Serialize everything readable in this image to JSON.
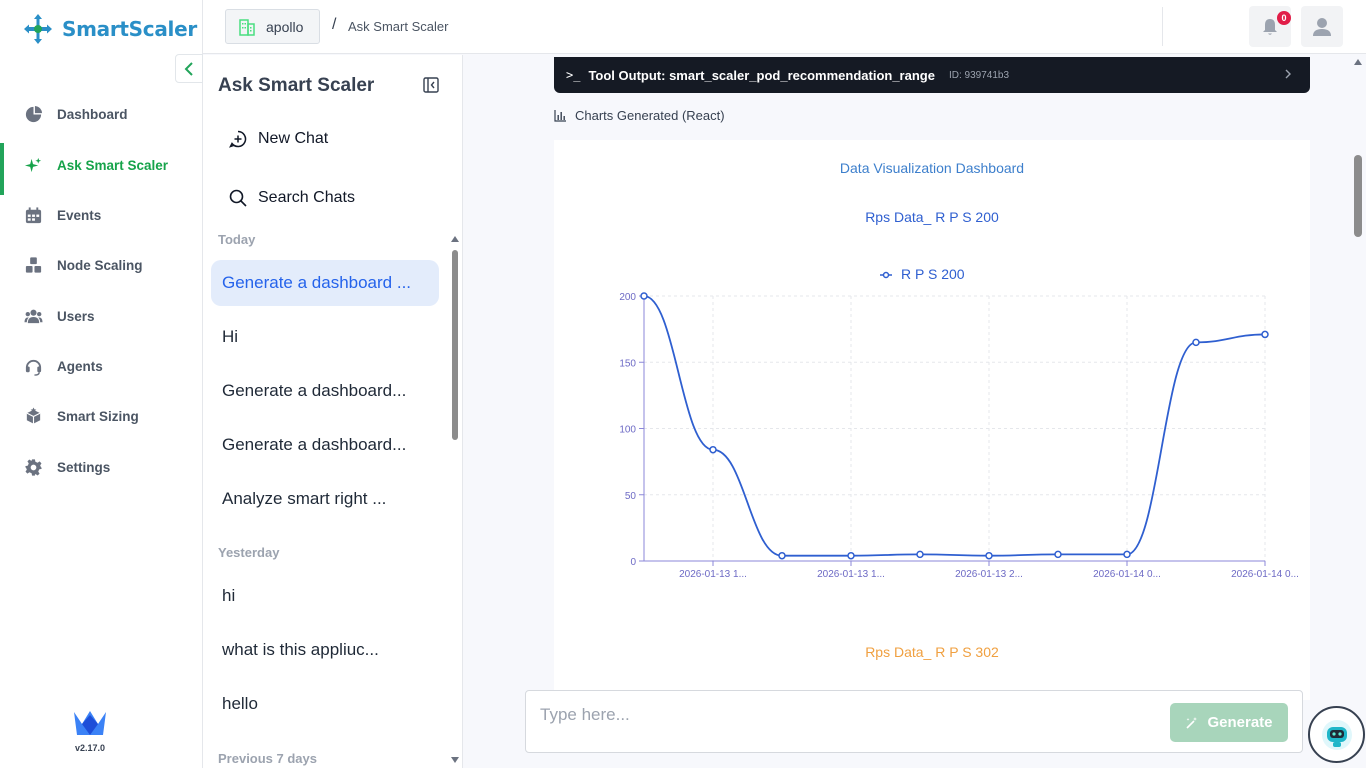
{
  "brand": {
    "name": "SmartScaler",
    "version": "v2.17.0",
    "accent": "#22a45a",
    "primary": "#2a8fc7"
  },
  "nav": {
    "items": [
      {
        "label": "Dashboard",
        "icon": "pie-chart-icon"
      },
      {
        "label": "Ask Smart Scaler",
        "icon": "sparkle-icon",
        "active": true
      },
      {
        "label": "Events",
        "icon": "calendar-icon"
      },
      {
        "label": "Node Scaling",
        "icon": "cubes-icon"
      },
      {
        "label": "Users",
        "icon": "users-icon"
      },
      {
        "label": "Agents",
        "icon": "headset-icon"
      },
      {
        "label": "Smart Sizing",
        "icon": "box-icon"
      },
      {
        "label": "Settings",
        "icon": "gear-icon"
      }
    ]
  },
  "topbar": {
    "workspace": "apollo",
    "separator": "/",
    "breadcrumb": "Ask Smart Scaler",
    "notifications": "0"
  },
  "chat_sidebar": {
    "title": "Ask Smart Scaler",
    "new_chat": "New Chat",
    "search": "Search Chats",
    "groups": [
      {
        "label": "Today",
        "items": [
          "Generate a dashboard ...",
          "Hi",
          "Generate a dashboard...",
          "Generate a dashboard...",
          "Analyze smart right ..."
        ]
      },
      {
        "label": "Yesterday",
        "items": [
          "hi",
          "what is this appliuc...",
          "hello"
        ]
      },
      {
        "label": "Previous 7 days",
        "items": []
      }
    ]
  },
  "main": {
    "tool_output": {
      "prompt": ">_",
      "label": "Tool Output: smart_scaler_pod_recommendation_range",
      "id": "ID: 939741b3"
    },
    "charts_generated": "Charts Generated (React)",
    "dashboard_title": "Data Visualization Dashboard",
    "chart2_title": "Rps Data_ R P S 302"
  },
  "chart_data": {
    "type": "line",
    "title": "Rps Data_ R P S 200",
    "series": [
      {
        "name": "R P S 200",
        "color": "#2f5fd0",
        "values": [
          200,
          84,
          4,
          4,
          5,
          4,
          5,
          5,
          165,
          171
        ]
      }
    ],
    "xtick_labels": [
      "2026-01-13 1...",
      "2026-01-13 1...",
      "2026-01-13 2...",
      "2026-01-14 0...",
      "2026-01-14 0..."
    ],
    "xtick_indices": [
      1,
      3,
      5,
      7,
      9
    ],
    "yticks": [
      0,
      50,
      100,
      150,
      200
    ],
    "ylim": [
      0,
      200
    ],
    "grid": true,
    "legend": "top-center"
  },
  "input": {
    "placeholder": "Type here...",
    "button": "Generate"
  }
}
